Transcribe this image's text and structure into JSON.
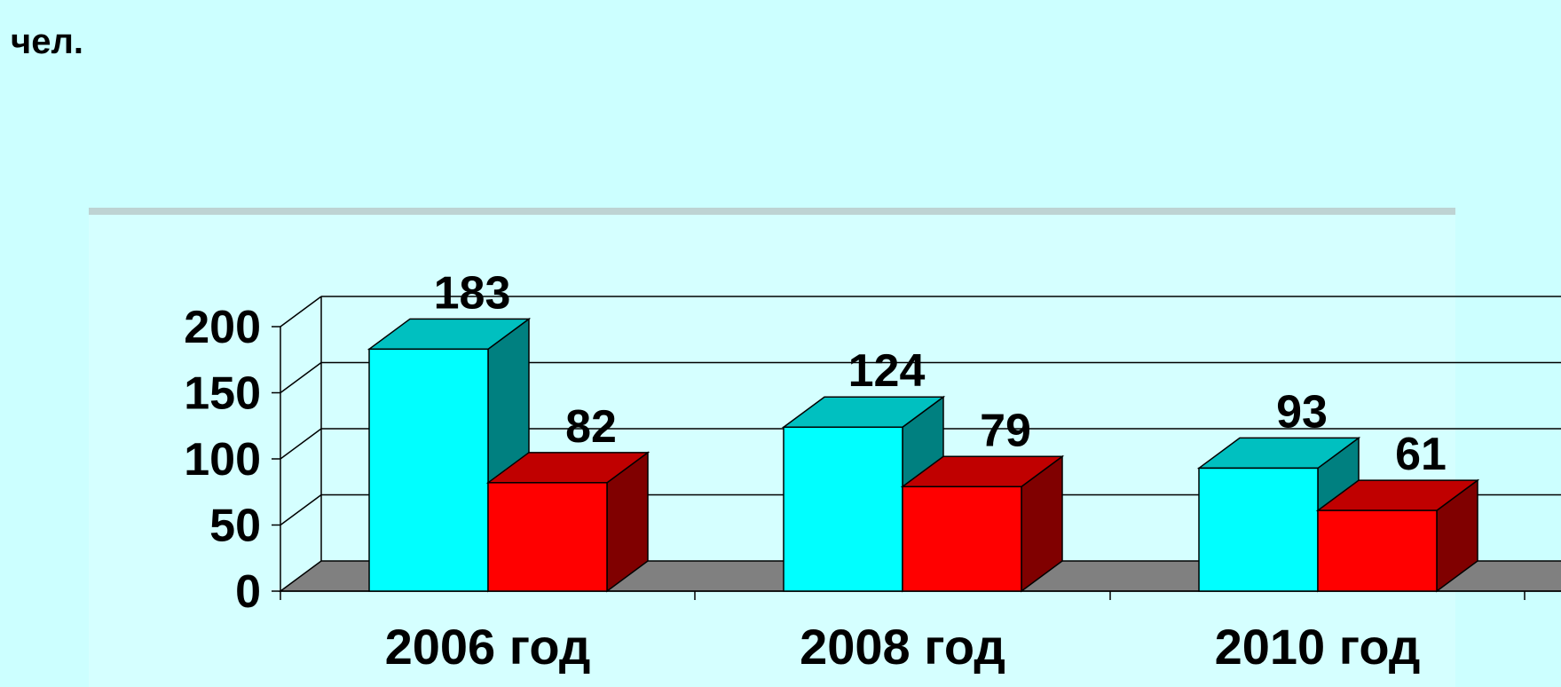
{
  "chart_data": {
    "type": "bar",
    "categories": [
      "2006 год",
      "2008 год",
      "2010 год"
    ],
    "series": [
      {
        "values": [
          183,
          124,
          93
        ]
      },
      {
        "values": [
          82,
          79,
          61
        ]
      }
    ],
    "ylabel": "чел.",
    "ylim": [
      0,
      200
    ],
    "yticks": [
      0,
      50,
      100,
      150,
      200
    ],
    "grid": true,
    "three_d": true,
    "colors": {
      "series1_front": "#00ffff",
      "series1_top": "#00c0c0",
      "series1_side": "#008080",
      "series2_front": "#ff0000",
      "series2_top": "#c00000",
      "series2_side": "#800000",
      "floor": "#808080",
      "background": "#ccffff"
    }
  }
}
